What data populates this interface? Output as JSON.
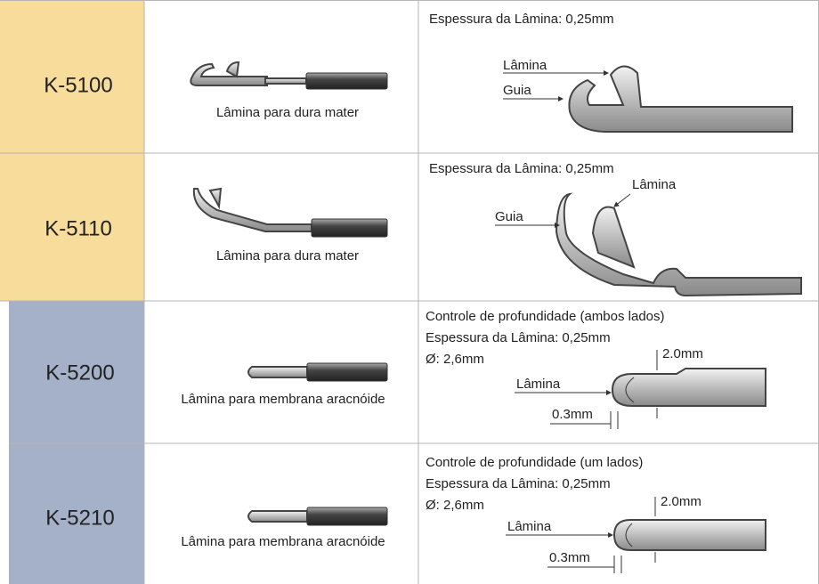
{
  "rows": [
    {
      "code": "K-5100",
      "caption": "Lâmina para dura mater",
      "specs": [
        "Espessura da Lâmina: 0,25mm"
      ],
      "labels": [
        "Lâmina",
        "Guia"
      ]
    },
    {
      "code": "K-5110",
      "caption": "Lâmina para dura mater",
      "specs": [
        "Espessura da Lâmina: 0,25mm"
      ],
      "labels": [
        "Lâmina",
        "Guia"
      ]
    },
    {
      "code": "K-5200",
      "caption": "Lâmina para membrana aracnóide",
      "specs": [
        "Controle de profundidade (ambos  lados)",
        "Espessura da Lâmina: 0,25mm",
        "Ø: 2,6mm"
      ],
      "labels": [
        "2.0mm",
        "Lâmina",
        "0.3mm"
      ]
    },
    {
      "code": "K-5210",
      "caption": "Lâmina para membrana aracnóide",
      "specs": [
        "Controle de profundidade (um  lados)",
        "Espessura da Lâmina: 0,25mm",
        "Ø: 2,6mm"
      ],
      "labels": [
        "2.0mm",
        "Lâmina",
        "0.3mm"
      ]
    }
  ]
}
